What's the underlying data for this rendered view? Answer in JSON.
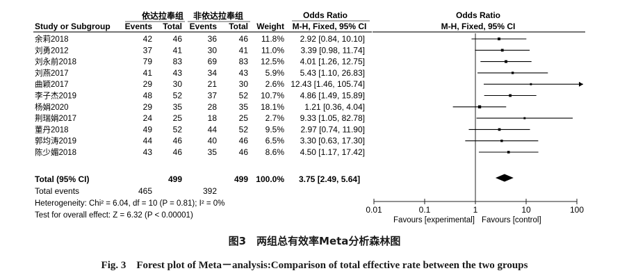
{
  "header": {
    "group_exp": "依达拉奉组",
    "group_ctrl": "非依达拉奉组",
    "odds_ratio": "Odds Ratio",
    "plot_title": "Odds Ratio",
    "col_study": "Study or Subgroup",
    "col_events": "Events",
    "col_total": "Total",
    "col_weight": "Weight",
    "col_method": "M-H, Fixed, 95% CI",
    "plot_method": "M-H, Fixed, 95% CI"
  },
  "total_row": {
    "label": "Total (95% CI)",
    "exp_total": "499",
    "ctrl_total": "499",
    "weight": "100.0%",
    "ci": "3.75 [2.49, 5.64]"
  },
  "total_events_row": {
    "label": "Total events",
    "exp_events": "465",
    "ctrl_events": "392"
  },
  "heterogeneity": "Heterogeneity: Chi² = 6.04, df = 10 (P = 0.81); I² = 0%",
  "overall_effect": "Test for overall effect: Z = 6.32 (P < 0.00001)",
  "favours_left": "Favours [experimental]",
  "favours_right": "Favours [control]",
  "caption_cn": "图3　两组总有效率Meta分析森林图",
  "caption_en": "Fig. 3　Forest plot of Meta－analysis:Comparison of total effective rate between the two groups",
  "chart_data": {
    "type": "forest",
    "x_scale": "log",
    "xlim": [
      0.01,
      100
    ],
    "ticks": [
      {
        "value": 0.01,
        "label": "0.01"
      },
      {
        "value": 0.1,
        "label": "0.1"
      },
      {
        "value": 1,
        "label": "1"
      },
      {
        "value": 10,
        "label": "10"
      },
      {
        "value": 100,
        "label": "100"
      }
    ],
    "studies": [
      {
        "name": "余莉2018",
        "e_events": 42,
        "e_total": 46,
        "c_events": 36,
        "c_total": 46,
        "weight": "11.8%",
        "ci_text": "2.92 [0.84, 10.10]",
        "or": 2.92,
        "lo": 0.84,
        "hi": 10.1,
        "w": 11.8
      },
      {
        "name": "刘勇2012",
        "e_events": 37,
        "e_total": 41,
        "c_events": 30,
        "c_total": 41,
        "weight": "11.0%",
        "ci_text": "3.39 [0.98, 11.74]",
        "or": 3.39,
        "lo": 0.98,
        "hi": 11.74,
        "w": 11.0
      },
      {
        "name": "刘永前2018",
        "e_events": 79,
        "e_total": 83,
        "c_events": 69,
        "c_total": 83,
        "weight": "12.5%",
        "ci_text": "4.01 [1.26, 12.75]",
        "or": 4.01,
        "lo": 1.26,
        "hi": 12.75,
        "w": 12.5
      },
      {
        "name": "刘燕2017",
        "e_events": 41,
        "e_total": 43,
        "c_events": 34,
        "c_total": 43,
        "weight": "5.9%",
        "ci_text": "5.43 [1.10, 26.83]",
        "or": 5.43,
        "lo": 1.1,
        "hi": 26.83,
        "w": 5.9
      },
      {
        "name": "曲颖2017",
        "e_events": 29,
        "e_total": 30,
        "c_events": 21,
        "c_total": 30,
        "weight": "2.6%",
        "ci_text": "12.43 [1.46, 105.74]",
        "or": 12.43,
        "lo": 1.46,
        "hi": 105.74,
        "w": 2.6
      },
      {
        "name": "李子杰2019",
        "e_events": 48,
        "e_total": 52,
        "c_events": 37,
        "c_total": 52,
        "weight": "10.7%",
        "ci_text": "4.86 [1.49, 15.89]",
        "or": 4.86,
        "lo": 1.49,
        "hi": 15.89,
        "w": 10.7
      },
      {
        "name": "杨娟2020",
        "e_events": 29,
        "e_total": 35,
        "c_events": 28,
        "c_total": 35,
        "weight": "18.1%",
        "ci_text": "1.21 [0.36, 4.04]",
        "or": 1.21,
        "lo": 0.36,
        "hi": 4.04,
        "w": 18.1
      },
      {
        "name": "荆瑞娟2017",
        "e_events": 24,
        "e_total": 25,
        "c_events": 18,
        "c_total": 25,
        "weight": "2.7%",
        "ci_text": "9.33 [1.05, 82.78]",
        "or": 9.33,
        "lo": 1.05,
        "hi": 82.78,
        "w": 2.7
      },
      {
        "name": "董丹2018",
        "e_events": 49,
        "e_total": 52,
        "c_events": 44,
        "c_total": 52,
        "weight": "9.5%",
        "ci_text": "2.97 [0.74, 11.90]",
        "or": 2.97,
        "lo": 0.74,
        "hi": 11.9,
        "w": 9.5
      },
      {
        "name": "郭均涛2019",
        "e_events": 44,
        "e_total": 46,
        "c_events": 40,
        "c_total": 46,
        "weight": "6.5%",
        "ci_text": "3.30 [0.63, 17.30]",
        "or": 3.3,
        "lo": 0.63,
        "hi": 17.3,
        "w": 6.5
      },
      {
        "name": "陈少媚2018",
        "e_events": 43,
        "e_total": 46,
        "c_events": 35,
        "c_total": 46,
        "weight": "8.6%",
        "ci_text": "4.50 [1.17, 17.42]",
        "or": 4.5,
        "lo": 1.17,
        "hi": 17.42,
        "w": 8.6
      }
    ],
    "pooled": {
      "or": 3.75,
      "lo": 2.49,
      "hi": 5.64
    }
  }
}
